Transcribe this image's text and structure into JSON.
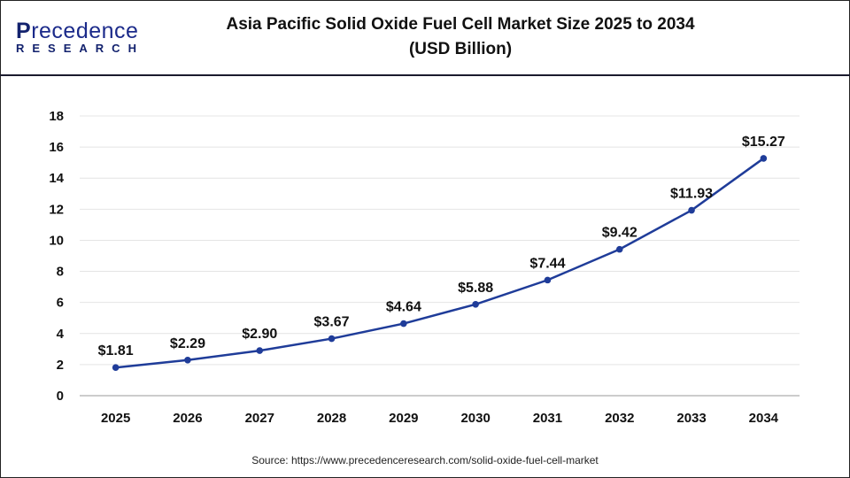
{
  "logo": {
    "line1": "Precedence",
    "line2": "RESEARCH"
  },
  "header": {
    "title_line1": "Asia Pacific Solid Oxide Fuel Cell Market Size 2025 to 2034",
    "title_line2": "(USD Billion)"
  },
  "source": "Source: https://www.precedenceresearch.com/solid-oxide-fuel-cell-market",
  "chart_data": {
    "type": "line",
    "title": "Asia Pacific Solid Oxide Fuel Cell Market Size 2025 to 2034 (USD Billion)",
    "categories": [
      "2025",
      "2026",
      "2027",
      "2028",
      "2029",
      "2030",
      "2031",
      "2032",
      "2033",
      "2034"
    ],
    "values": [
      1.81,
      2.29,
      2.9,
      3.67,
      4.64,
      5.88,
      7.44,
      9.42,
      11.93,
      15.27
    ],
    "data_labels": [
      "$1.81",
      "$2.29",
      "$2.90",
      "$3.67",
      "$4.64",
      "$5.88",
      "$7.44",
      "$9.42",
      "$11.93",
      "$15.27"
    ],
    "yticks": [
      "0",
      "2",
      "4",
      "6",
      "8",
      "10",
      "12",
      "14",
      "16",
      "18"
    ],
    "ylim": [
      0,
      18
    ],
    "grid": true,
    "line_color": "#1f3c99",
    "xlabel": "",
    "ylabel": ""
  }
}
